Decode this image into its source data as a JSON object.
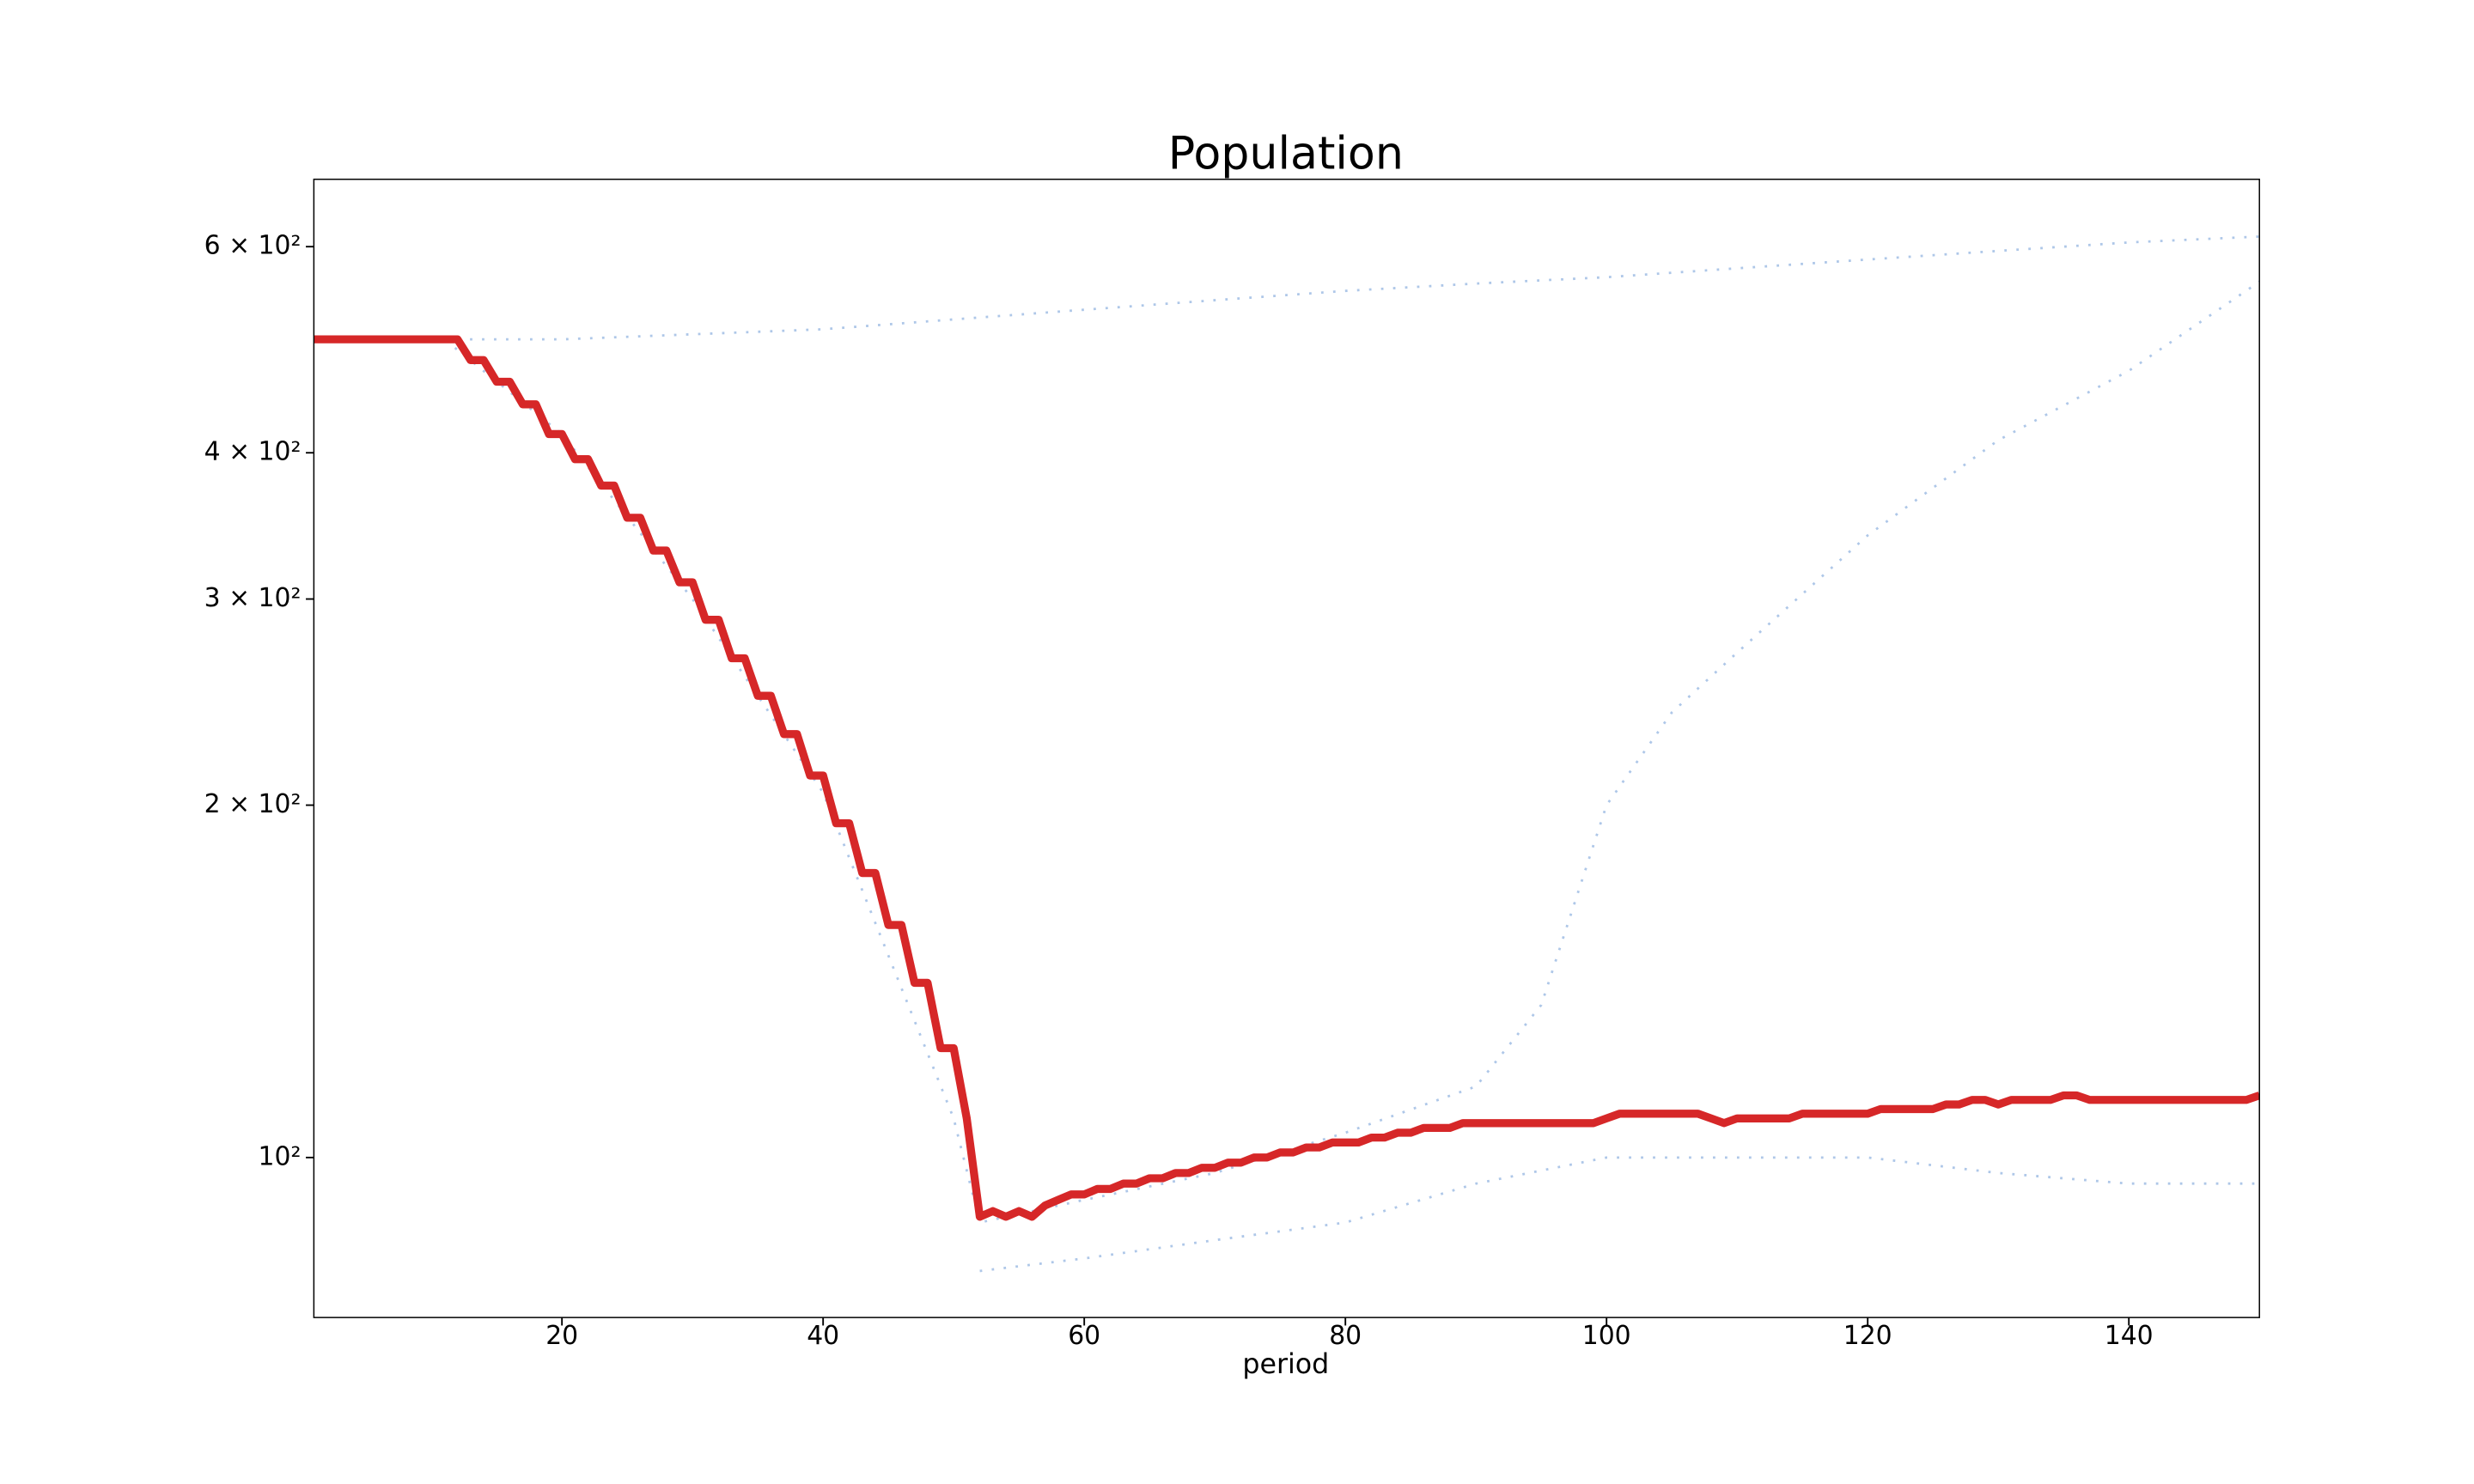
{
  "chart_data": {
    "type": "line",
    "title": "Population",
    "x_label": "period",
    "log_y": true,
    "xlim": [
      1,
      150
    ],
    "xticks": [
      20,
      40,
      60,
      80,
      100,
      120,
      140
    ],
    "ylim": [
      73,
      685
    ],
    "yticks": [
      {
        "value": 100,
        "label": "10²"
      },
      {
        "value": 200,
        "label": "2 × 10²"
      },
      {
        "value": 300,
        "label": "3 × 10²"
      },
      {
        "value": 400,
        "label": "4 × 10²"
      },
      {
        "value": 600,
        "label": "6 × 10²"
      }
    ],
    "series": [
      {
        "color": "#aec7e8",
        "style": "dotted",
        "x": [
          1,
          20,
          30,
          40,
          50,
          60,
          70,
          80,
          90,
          100,
          110,
          120,
          130,
          140,
          150
        ],
        "values": [
          500,
          500,
          505,
          510,
          520,
          530,
          540,
          550,
          558,
          565,
          575,
          585,
          595,
          605,
          612
        ]
      },
      {
        "color": "#aec7e8",
        "style": "dotted",
        "x": [
          1,
          11,
          20,
          30,
          40,
          50,
          52,
          60,
          70,
          80,
          90,
          95,
          100,
          105,
          110,
          120,
          130,
          140,
          150
        ],
        "values": [
          500,
          500,
          415,
          300,
          205,
          108,
          88,
          92,
          97,
          105,
          115,
          135,
          200,
          240,
          270,
          340,
          410,
          470,
          560
        ]
      },
      {
        "color": "#aec7e8",
        "style": "dotted",
        "x": [
          52,
          60,
          70,
          80,
          90,
          100,
          110,
          120,
          130,
          140,
          150
        ],
        "values": [
          80,
          82,
          85,
          88,
          95,
          100,
          100,
          100,
          97,
          95,
          95
        ]
      },
      {
        "color": "#d62728",
        "style": "solid",
        "x": [
          1,
          2,
          3,
          4,
          5,
          6,
          7,
          8,
          9,
          10,
          11,
          12,
          13,
          14,
          15,
          16,
          17,
          18,
          19,
          20,
          21,
          22,
          23,
          24,
          25,
          26,
          27,
          28,
          29,
          30,
          31,
          32,
          33,
          34,
          35,
          36,
          37,
          38,
          39,
          40,
          41,
          42,
          43,
          44,
          45,
          46,
          47,
          48,
          49,
          50,
          51,
          52,
          53,
          54,
          55,
          56,
          57,
          58,
          59,
          60,
          61,
          62,
          63,
          64,
          65,
          66,
          67,
          68,
          69,
          70,
          71,
          72,
          73,
          74,
          75,
          76,
          77,
          78,
          79,
          80,
          81,
          82,
          83,
          84,
          85,
          86,
          87,
          88,
          89,
          90,
          91,
          92,
          93,
          94,
          95,
          96,
          97,
          98,
          99,
          100,
          101,
          102,
          103,
          104,
          105,
          106,
          107,
          108,
          109,
          110,
          111,
          112,
          113,
          114,
          115,
          116,
          117,
          118,
          119,
          120,
          121,
          122,
          123,
          124,
          125,
          126,
          127,
          128,
          129,
          130,
          131,
          132,
          133,
          134,
          135,
          136,
          137,
          138,
          139,
          140,
          141,
          142,
          143,
          144,
          145,
          146,
          147,
          148,
          149,
          150
        ],
        "values": [
          500,
          500,
          500,
          500,
          500,
          500,
          500,
          500,
          500,
          500,
          500,
          500,
          480,
          480,
          460,
          460,
          440,
          440,
          415,
          415,
          395,
          395,
          375,
          375,
          352,
          352,
          330,
          330,
          310,
          310,
          288,
          288,
          267,
          267,
          248,
          248,
          230,
          230,
          212,
          212,
          193,
          193,
          175,
          175,
          158,
          158,
          141,
          141,
          124,
          124,
          108,
          89,
          90,
          89,
          90,
          89,
          91,
          92,
          93,
          93,
          94,
          94,
          95,
          95,
          96,
          96,
          97,
          97,
          98,
          98,
          99,
          99,
          100,
          100,
          101,
          101,
          102,
          102,
          103,
          103,
          103,
          104,
          104,
          105,
          105,
          106,
          106,
          106,
          107,
          107,
          107,
          107,
          107,
          107,
          107,
          107,
          107,
          107,
          107,
          108,
          109,
          109,
          109,
          109,
          109,
          109,
          109,
          108,
          107,
          108,
          108,
          108,
          108,
          108,
          109,
          109,
          109,
          109,
          109,
          109,
          110,
          110,
          110,
          110,
          110,
          111,
          111,
          112,
          112,
          111,
          112,
          112,
          112,
          112,
          113,
          113,
          112,
          112,
          112,
          112,
          112,
          112,
          112,
          112,
          112,
          112,
          112,
          112,
          112,
          113
        ]
      }
    ]
  }
}
